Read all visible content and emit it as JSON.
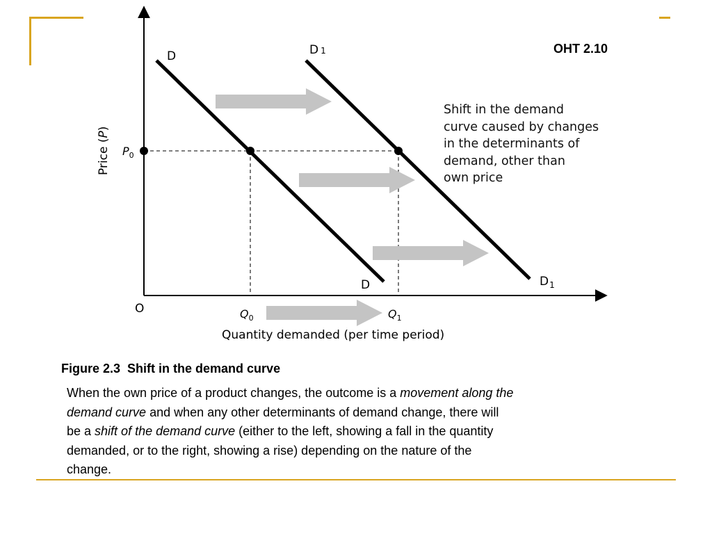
{
  "header": {
    "oht": "OHT 2.10"
  },
  "colors": {
    "accent": "#d9a520",
    "arrow": "#c4c4c4",
    "curve": "#000000"
  },
  "diagram": {
    "origin_label": "O",
    "y_axis_label": "Price (P)",
    "y_axis_label_main": "Price (",
    "y_axis_label_var": "P",
    "y_axis_label_close": ")",
    "x_axis_label": "Quantity demanded (per time period)",
    "p0": {
      "base": "P",
      "sub": "0"
    },
    "q0": {
      "base": "Q",
      "sub": "0"
    },
    "q1": {
      "base": "Q",
      "sub": "1"
    },
    "curve_d_top": "D",
    "curve_d_bottom": "D",
    "curve_d1_top": {
      "base": "D",
      "sub": "1"
    },
    "curve_d1_bottom": {
      "base": "D",
      "sub": "1"
    },
    "note_lines": [
      "Shift in the demand",
      "curve caused by changes",
      "in the determinants of",
      "demand, other than",
      "own price"
    ]
  },
  "figure": {
    "number": "Figure 2.3",
    "title": "Shift in the demand curve"
  },
  "caption": {
    "l1_a": "When the own price of a product changes, the outcome is a ",
    "l1_b": "movement along the",
    "l2_a": "demand curve",
    "l2_b": " and when any other determinants of demand change, there will",
    "l3_a": "be a ",
    "l3_b": "shift of the demand curve",
    "l3_c": " (either to the left, showing a fall in the quantity",
    "l4": "demanded, or to the right, showing a rise) depending on the nature of the",
    "l5": "change."
  }
}
